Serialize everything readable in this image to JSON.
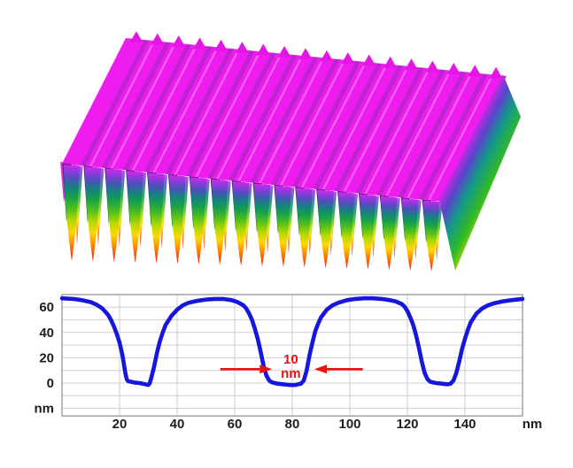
{
  "figure": {
    "description": "AFM 3D topography of a periodic nano-grating with height profile cross-section",
    "background": "#ffffff"
  },
  "surface3d": {
    "num_ridges": 18,
    "front_left": [
      70,
      185
    ],
    "front_right": [
      500,
      228
    ],
    "depth_vector": [
      72,
      -142
    ],
    "blade_length_start": 110,
    "blade_length_step": -1.7,
    "colors": {
      "top": "#ee1cee",
      "top_stripe_dark": "#8e2bb4",
      "top_stripe_light": "#ff8dff",
      "back_peak": "#e516e5",
      "left_wedge": "#cc22cc",
      "rainbow": [
        [
          0,
          "#d926ee"
        ],
        [
          0.07,
          "#8a3bd9"
        ],
        [
          0.15,
          "#4a52b8"
        ],
        [
          0.24,
          "#14837f"
        ],
        [
          0.34,
          "#16a04a"
        ],
        [
          0.46,
          "#52c01b"
        ],
        [
          0.58,
          "#b4d800"
        ],
        [
          0.7,
          "#ffd800"
        ],
        [
          0.82,
          "#ff8c00"
        ],
        [
          0.93,
          "#ff4400"
        ],
        [
          1,
          "#ff1000"
        ]
      ],
      "shadow": [
        [
          0,
          "#34166b"
        ],
        [
          0.45,
          "#0f4f63"
        ],
        [
          0.8,
          "#156f2e"
        ],
        [
          1,
          "#1f8f1f"
        ]
      ],
      "side": [
        [
          0,
          "#ee22ee"
        ],
        [
          0.16,
          "#5a44cc"
        ],
        [
          0.3,
          "#12998a"
        ],
        [
          0.48,
          "#33bb22"
        ],
        [
          0.66,
          "#eeee00"
        ],
        [
          0.82,
          "#ff8800"
        ],
        [
          1,
          "#ff2200"
        ]
      ]
    }
  },
  "chart_data": {
    "type": "line",
    "title": "",
    "xlabel": "nm",
    "ylabel": "nm",
    "xlim": [
      0,
      160
    ],
    "ylim": [
      -26,
      70
    ],
    "grid": true,
    "x_ticks": [
      20,
      40,
      60,
      80,
      100,
      120,
      140
    ],
    "y_ticks": [
      0,
      20,
      40,
      60
    ],
    "x_grid_step": 20,
    "y_grid_step": 10,
    "line_color": "#1616dd",
    "grid_color": "#cdced6",
    "border_color": "#a2a2aa",
    "tick_color": "#1d1d1f",
    "series": [
      {
        "name": "height profile",
        "x": [
          0,
          4,
          7,
          10,
          12,
          14,
          16,
          17,
          18,
          19,
          20,
          21,
          22,
          22.5,
          23,
          25,
          27,
          29,
          30,
          30.5,
          31,
          32,
          33,
          34,
          35,
          36,
          38,
          40,
          42,
          44,
          47,
          50,
          53,
          56,
          59,
          61,
          63,
          64,
          65,
          66,
          67,
          68,
          69,
          70,
          71,
          72,
          73,
          75,
          77,
          79,
          81,
          83,
          84,
          85,
          86,
          87,
          88,
          89,
          90,
          92,
          94,
          96,
          99,
          102,
          105,
          108,
          111,
          114,
          116,
          118,
          119,
          120,
          121,
          122,
          123,
          124,
          125,
          126,
          127,
          128,
          130,
          132,
          134,
          135,
          136,
          137,
          138,
          139,
          140,
          141,
          142,
          144,
          146,
          148,
          150,
          153,
          156,
          160
        ],
        "y": [
          67,
          66.5,
          65.5,
          64,
          62,
          59,
          54,
          50,
          45,
          39,
          32,
          22,
          8,
          3,
          1.5,
          0.5,
          0,
          -1,
          -1.5,
          0,
          4,
          13,
          24,
          33,
          40,
          46,
          53,
          58,
          61.5,
          63.5,
          65,
          66,
          66.5,
          66.5,
          65.5,
          64,
          61.5,
          59,
          55,
          50,
          43,
          35,
          25,
          14,
          6,
          2,
          0.5,
          -0.5,
          -1,
          -1.5,
          -1.5,
          -0.5,
          2,
          10,
          22,
          32,
          41,
          47,
          52,
          58,
          61.5,
          63.5,
          65.5,
          66.5,
          67,
          67,
          66.5,
          65.5,
          64.5,
          62.5,
          60.5,
          57,
          52,
          46,
          38,
          28,
          17,
          8,
          3,
          1,
          0,
          -0.5,
          -1,
          -0.5,
          2,
          8,
          17,
          27,
          35,
          42,
          48,
          55,
          59,
          61.5,
          63,
          64.5,
          65.5,
          66.5
        ]
      }
    ],
    "annotation": {
      "line1": "10",
      "line2": "nm",
      "color": "#e81212",
      "text_x_nm": 79.5,
      "arrow_y_nm": 11,
      "left_arrow_from_nm": 55,
      "left_arrow_to_nm": 73,
      "right_arrow_from_nm": 104.5,
      "right_arrow_to_nm": 87.7
    }
  }
}
